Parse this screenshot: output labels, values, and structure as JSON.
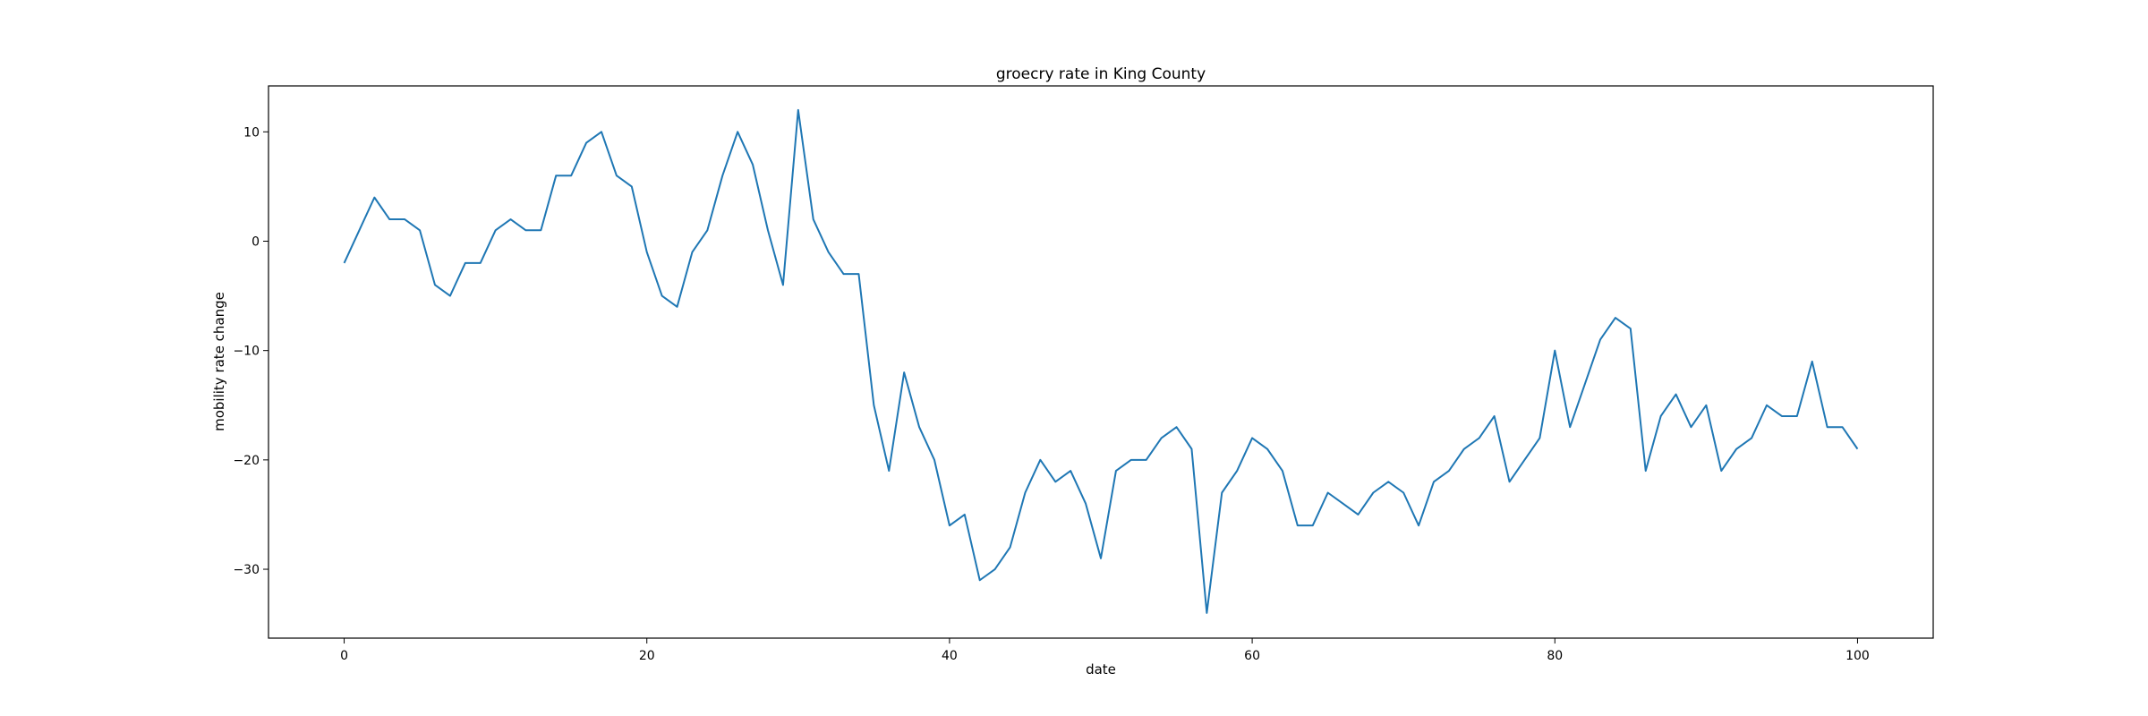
{
  "chart_data": {
    "type": "line",
    "title": "groecry rate in King County",
    "xlabel": "date",
    "ylabel": "mobility rate change",
    "xlim": [
      -5,
      105
    ],
    "ylim": [
      -36.3,
      14.2
    ],
    "xticks": [
      0,
      20,
      40,
      60,
      80,
      100
    ],
    "yticks": [
      10,
      0,
      -10,
      -20,
      -30
    ],
    "ytick_labels": [
      "10",
      "0",
      "−10",
      "−20",
      "−30"
    ],
    "grid": false,
    "series": [
      {
        "color": "#1f77b4",
        "x": [
          0,
          1,
          2,
          3,
          4,
          5,
          6,
          7,
          8,
          9,
          10,
          11,
          12,
          13,
          14,
          15,
          16,
          17,
          18,
          19,
          20,
          21,
          22,
          23,
          24,
          25,
          26,
          27,
          28,
          29,
          30,
          31,
          32,
          33,
          34,
          35,
          36,
          37,
          38,
          39,
          40,
          41,
          42,
          43,
          44,
          45,
          46,
          47,
          48,
          49,
          50,
          51,
          52,
          53,
          54,
          55,
          56,
          57,
          58,
          59,
          60,
          61,
          62,
          63,
          64,
          65,
          66,
          67,
          68,
          69,
          70,
          71,
          72,
          73,
          74,
          75,
          76,
          77,
          78,
          79,
          80,
          81,
          82,
          83,
          84,
          85,
          86,
          87,
          88,
          89,
          90,
          91,
          92,
          93,
          94,
          95,
          96,
          97,
          98,
          99,
          100
        ],
        "y": [
          -2,
          1,
          4,
          2,
          2,
          1,
          -4,
          -5,
          -2,
          -2,
          1,
          2,
          1,
          1,
          6,
          6,
          9,
          10,
          6,
          5,
          -1,
          -5,
          -6,
          -1,
          1,
          6,
          10,
          7,
          1,
          -4,
          12,
          2,
          -1,
          -3,
          -3,
          -15,
          -21,
          -12,
          -17,
          -20,
          -26,
          -25,
          -31,
          -30,
          -28,
          -23,
          -20,
          -22,
          -21,
          -24,
          -29,
          -21,
          -20,
          -20,
          -18,
          -17,
          -19,
          -34,
          -23,
          -21,
          -18,
          -19,
          -21,
          -26,
          -26,
          -23,
          -24,
          -25,
          -23,
          -22,
          -23,
          -26,
          -22,
          -21,
          -19,
          -18,
          -16,
          -22,
          -20,
          -18,
          -10,
          -17,
          -13,
          -9,
          -7,
          -8,
          -21,
          -16,
          -14,
          -17,
          -15,
          -21,
          -19,
          -18,
          -15,
          -16,
          -16,
          -11,
          -17,
          -17,
          -19
        ]
      }
    ]
  }
}
